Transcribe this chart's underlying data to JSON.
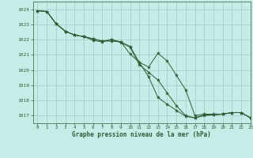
{
  "title": "Graphe pression niveau de la mer (hPa)",
  "background_color": "#c6ece8",
  "grid_color": "#a0ccc8",
  "line_color": "#2d5e35",
  "marker_color": "#2d5e35",
  "xlim": [
    -0.5,
    23
  ],
  "ylim": [
    1016.5,
    1024.5
  ],
  "yticks": [
    1017,
    1018,
    1019,
    1020,
    1021,
    1022,
    1023,
    1024
  ],
  "xticks": [
    0,
    1,
    2,
    3,
    4,
    5,
    6,
    7,
    8,
    9,
    10,
    11,
    12,
    13,
    14,
    15,
    16,
    17,
    18,
    19,
    20,
    21,
    22,
    23
  ],
  "series": [
    [
      1023.9,
      1023.85,
      1023.05,
      1022.55,
      1022.3,
      1022.2,
      1022.05,
      1021.9,
      1022.0,
      1021.85,
      1021.55,
      1020.5,
      1020.2,
      1021.1,
      1020.6,
      1019.65,
      1018.7,
      1017.0,
      1017.1,
      1017.1,
      1017.1,
      1017.2,
      1017.2,
      1016.85
    ],
    [
      1023.9,
      1023.85,
      1023.05,
      1022.55,
      1022.3,
      1022.2,
      1021.95,
      1021.85,
      1022.0,
      1021.8,
      1021.5,
      1020.35,
      1019.85,
      1019.35,
      1018.5,
      1017.65,
      1017.0,
      1016.85,
      1017.0,
      1017.05,
      1017.1,
      1017.2,
      1017.2,
      1016.85
    ],
    [
      1023.9,
      1023.85,
      1023.05,
      1022.55,
      1022.3,
      1022.2,
      1022.05,
      1021.9,
      1021.9,
      1021.85,
      1021.05,
      1020.5,
      1019.55,
      1018.2,
      1017.75,
      1017.35,
      1016.95,
      1016.85,
      1017.05,
      1017.05,
      1017.1,
      1017.2,
      1017.2,
      1016.85
    ]
  ]
}
